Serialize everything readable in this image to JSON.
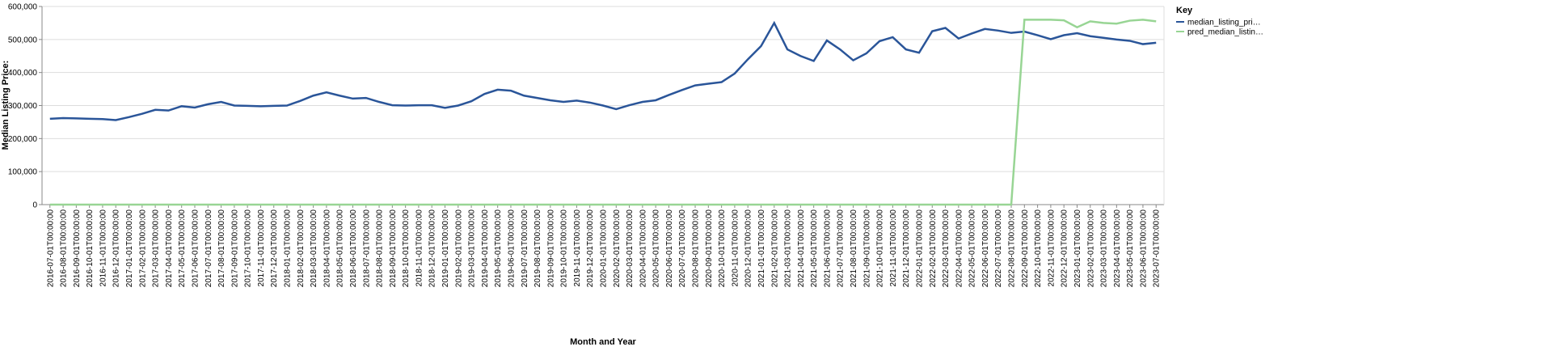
{
  "chart_data": {
    "type": "line",
    "x_label": "Month and Year",
    "y_label": "Median Listing Price:",
    "legend_title": "Key",
    "legend_position": "right",
    "grid": true,
    "categories": [
      "2016-07-01T00:00:00",
      "2016-08-01T00:00:00",
      "2016-09-01T00:00:00",
      "2016-10-01T00:00:00",
      "2016-11-01T00:00:00",
      "2016-12-01T00:00:00",
      "2017-01-01T00:00:00",
      "2017-02-01T00:00:00",
      "2017-03-01T00:00:00",
      "2017-04-01T00:00:00",
      "2017-05-01T00:00:00",
      "2017-06-01T00:00:00",
      "2017-07-01T00:00:00",
      "2017-08-01T00:00:00",
      "2017-09-01T00:00:00",
      "2017-10-01T00:00:00",
      "2017-11-01T00:00:00",
      "2017-12-01T00:00:00",
      "2018-01-01T00:00:00",
      "2018-02-01T00:00:00",
      "2018-03-01T00:00:00",
      "2018-04-01T00:00:00",
      "2018-05-01T00:00:00",
      "2018-06-01T00:00:00",
      "2018-07-01T00:00:00",
      "2018-08-01T00:00:00",
      "2018-09-01T00:00:00",
      "2018-10-01T00:00:00",
      "2018-11-01T00:00:00",
      "2018-12-01T00:00:00",
      "2019-01-01T00:00:00",
      "2019-02-01T00:00:00",
      "2019-03-01T00:00:00",
      "2019-04-01T00:00:00",
      "2019-05-01T00:00:00",
      "2019-06-01T00:00:00",
      "2019-07-01T00:00:00",
      "2019-08-01T00:00:00",
      "2019-09-01T00:00:00",
      "2019-10-01T00:00:00",
      "2019-11-01T00:00:00",
      "2019-12-01T00:00:00",
      "2020-01-01T00:00:00",
      "2020-02-01T00:00:00",
      "2020-03-01T00:00:00",
      "2020-04-01T00:00:00",
      "2020-05-01T00:00:00",
      "2020-06-01T00:00:00",
      "2020-07-01T00:00:00",
      "2020-08-01T00:00:00",
      "2020-09-01T00:00:00",
      "2020-10-01T00:00:00",
      "2020-11-01T00:00:00",
      "2020-12-01T00:00:00",
      "2021-01-01T00:00:00",
      "2021-02-01T00:00:00",
      "2021-03-01T00:00:00",
      "2021-04-01T00:00:00",
      "2021-05-01T00:00:00",
      "2021-06-01T00:00:00",
      "2021-07-01T00:00:00",
      "2021-08-01T00:00:00",
      "2021-09-01T00:00:00",
      "2021-10-01T00:00:00",
      "2021-11-01T00:00:00",
      "2021-12-01T00:00:00",
      "2022-01-01T00:00:00",
      "2022-02-01T00:00:00",
      "2022-03-01T00:00:00",
      "2022-04-01T00:00:00",
      "2022-05-01T00:00:00",
      "2022-06-01T00:00:00",
      "2022-07-01T00:00:00",
      "2022-08-01T00:00:00",
      "2022-09-01T00:00:00",
      "2022-10-01T00:00:00",
      "2022-11-01T00:00:00",
      "2022-12-01T00:00:00",
      "2023-01-01T00:00:00",
      "2023-02-01T00:00:00",
      "2023-03-01T00:00:00",
      "2023-04-01T00:00:00",
      "2023-05-01T00:00:00",
      "2023-06-01T00:00:00",
      "2023-07-01T00:00:00"
    ],
    "series": [
      {
        "name": "median_listing_pri…",
        "color": "#2a5599",
        "values": [
          260000,
          262000,
          261000,
          260000,
          259000,
          256000,
          265000,
          275000,
          287000,
          285000,
          298000,
          294000,
          304000,
          311000,
          300000,
          299000,
          298000,
          299000,
          300000,
          314000,
          330000,
          340000,
          330000,
          321000,
          323000,
          311000,
          301000,
          300000,
          301000,
          301000,
          293000,
          300000,
          313000,
          335000,
          348000,
          345000,
          330000,
          323000,
          316000,
          311000,
          315000,
          309000,
          300000,
          289000,
          301000,
          311000,
          316000,
          332000,
          347000,
          361000,
          366000,
          371000,
          397000,
          440000,
          480000,
          550000,
          470000,
          450000,
          435000,
          497000,
          470000,
          437000,
          458000,
          495000,
          507000,
          470000,
          460000,
          525000,
          535000,
          503000,
          518000,
          532000,
          527000,
          520000,
          524000,
          513000,
          501000,
          513000,
          519000,
          510000,
          505000,
          500000,
          496000,
          486000,
          490000
        ]
      },
      {
        "name": "pred_median_listin…",
        "color": "#98d594",
        "values": [
          0,
          0,
          0,
          0,
          0,
          0,
          0,
          0,
          0,
          0,
          0,
          0,
          0,
          0,
          0,
          0,
          0,
          0,
          0,
          0,
          0,
          0,
          0,
          0,
          0,
          0,
          0,
          0,
          0,
          0,
          0,
          0,
          0,
          0,
          0,
          0,
          0,
          0,
          0,
          0,
          0,
          0,
          0,
          0,
          0,
          0,
          0,
          0,
          0,
          0,
          0,
          0,
          0,
          0,
          0,
          0,
          0,
          0,
          0,
          0,
          0,
          0,
          0,
          0,
          0,
          0,
          0,
          0,
          0,
          0,
          0,
          0,
          0,
          0,
          560000,
          560000,
          560000,
          558000,
          537000,
          555000,
          550000,
          548000,
          557000,
          560000,
          555000
        ]
      }
    ],
    "ylim": [
      0,
      600000
    ],
    "yticks": [
      0,
      {
        "value": 100000,
        "label": "100,000"
      },
      {
        "value": 200000,
        "label": "200,000"
      },
      {
        "value": 300000,
        "label": "300,000"
      },
      {
        "value": 400000,
        "label": "400,000"
      },
      {
        "value": 500000,
        "label": "500,000"
      },
      {
        "value": 600000,
        "label": "600,000"
      }
    ]
  }
}
